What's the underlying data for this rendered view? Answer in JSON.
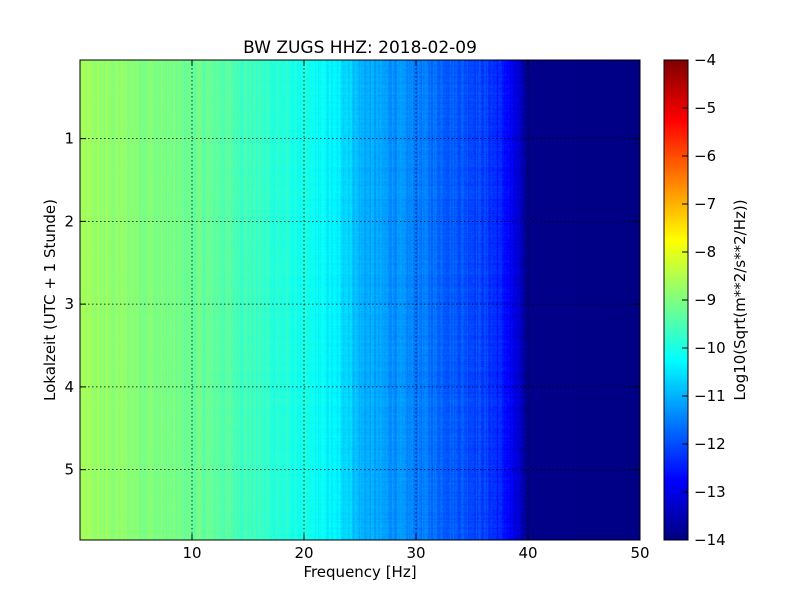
{
  "chart_data": {
    "type": "heatmap",
    "title": "BW ZUGS HHZ: 2018-02-09",
    "xlabel": "Frequency [Hz]",
    "ylabel": "Lokalzeit (UTC + 1 Stunde)",
    "xlim": [
      0,
      50
    ],
    "ylim": [
      5.85,
      0.05
    ],
    "x_ticks": [
      10,
      20,
      30,
      40,
      50
    ],
    "y_ticks": [
      1,
      2,
      3,
      4,
      5
    ],
    "grid": true,
    "colormap": "jet",
    "colorbar": {
      "label": "Log10(Sqrt(m**2/s**2/Hz))",
      "min": -14,
      "max": -4,
      "ticks": [
        -4,
        -5,
        -6,
        -7,
        -8,
        -9,
        -10,
        -11,
        -12,
        -13,
        -14
      ]
    },
    "spectrum_profile": {
      "frequency_hz": [
        0,
        2,
        5,
        8,
        10,
        12,
        15,
        18,
        20,
        22,
        24,
        25,
        27,
        30,
        32,
        34,
        36,
        37,
        38,
        39,
        40,
        50
      ],
      "value": [
        -8.7,
        -8.8,
        -8.9,
        -9.1,
        -9.2,
        -9.3,
        -9.6,
        -9.9,
        -10.1,
        -10.3,
        -10.6,
        -11.0,
        -11.2,
        -11.5,
        -11.7,
        -11.9,
        -12.1,
        -12.3,
        -12.6,
        -13.2,
        -13.9,
        -13.95
      ]
    }
  }
}
